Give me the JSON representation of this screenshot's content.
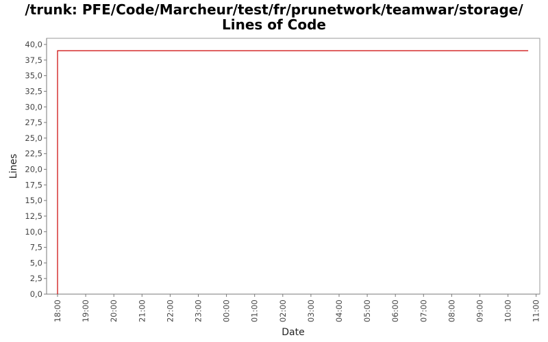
{
  "chart_data": {
    "type": "line",
    "title_line1": "/trunk: PFE/Code/Marcheur/test/fr/prunetwork/teamwar/storage/",
    "title_line2": "Lines of Code",
    "xlabel": "Date",
    "ylabel": "Lines",
    "ylim": [
      0,
      40
    ],
    "y_ticks": [
      "0,0",
      "2,5",
      "5,0",
      "7,5",
      "10,0",
      "12,5",
      "15,0",
      "17,5",
      "20,0",
      "22,5",
      "25,0",
      "27,5",
      "30,0",
      "32,5",
      "35,0",
      "37,5",
      "40,0"
    ],
    "x_ticks": [
      "18:00",
      "19:00",
      "20:00",
      "21:00",
      "22:00",
      "23:00",
      "00:00",
      "01:00",
      "02:00",
      "03:00",
      "04:00",
      "05:00",
      "06:00",
      "07:00",
      "08:00",
      "09:00",
      "10:00",
      "11:00"
    ],
    "grid": false,
    "series": [
      {
        "color": "#cc0000",
        "points": [
          {
            "x": "18:00",
            "y": 0
          },
          {
            "x": "18:00",
            "y": 39
          },
          {
            "x": "10:43",
            "y": 39
          }
        ]
      }
    ]
  }
}
